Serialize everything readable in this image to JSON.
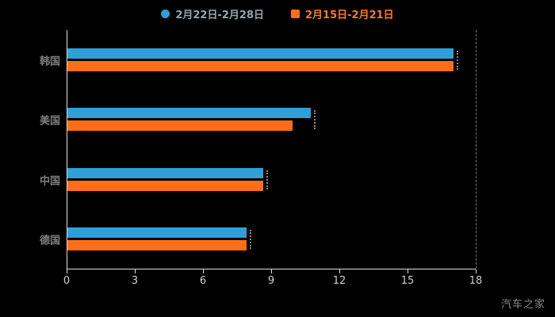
{
  "chart_data": {
    "type": "bar",
    "orientation": "horizontal",
    "title": "",
    "categories": [
      "韩国",
      "美国",
      "中国",
      "德国"
    ],
    "series": [
      {
        "name": "2月22日-2月28日",
        "color": "#2F9FD8",
        "values": [
          17,
          10.7,
          8.6,
          7.9
        ]
      },
      {
        "name": "2月15日-2月21日",
        "color": "#FF6E17",
        "values": [
          17,
          9.9,
          8.6,
          7.9
        ]
      }
    ],
    "xlim": [
      0,
      18
    ],
    "xticks": [
      0,
      3,
      6,
      9,
      12,
      15,
      18
    ],
    "legend_position": "top",
    "background": "#000000",
    "grid": "right-edge-dashed-line"
  },
  "watermark": "汽车之家"
}
